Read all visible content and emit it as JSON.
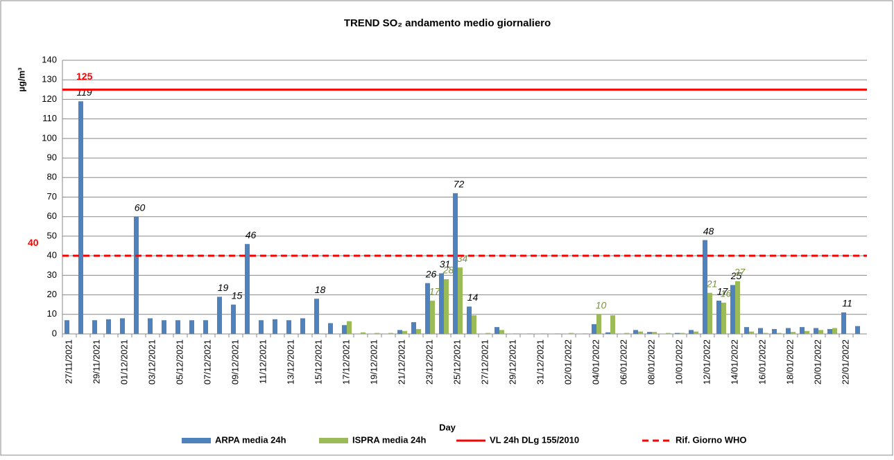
{
  "chart_data": {
    "type": "bar",
    "title": "TREND SO₂ andamento medio giornaliero",
    "y_label": "µg/m³",
    "x_label": "Day",
    "categories": [
      "27/11/2021",
      null,
      "29/11/2021",
      null,
      "01/12/2021",
      null,
      "03/12/2021",
      null,
      "05/12/2021",
      null,
      "07/12/2021",
      null,
      "09/12/2021",
      null,
      "11/12/2021",
      null,
      "13/12/2021",
      null,
      "15/12/2021",
      null,
      "17/12/2021",
      null,
      "19/12/2021",
      null,
      "21/12/2021",
      null,
      "23/12/2021",
      null,
      "25/12/2021",
      null,
      "27/12/2021",
      null,
      "29/12/2021",
      null,
      "31/12/2021",
      null,
      "02/01/2022",
      null,
      "04/01/2022",
      null,
      "06/01/2022",
      null,
      "08/01/2022",
      null,
      "10/01/2022",
      null,
      "12/01/2022",
      null,
      "14/01/2022",
      null,
      "16/01/2022",
      null,
      "18/01/2022",
      null,
      "20/01/2022",
      null,
      "22/01/2022",
      null
    ],
    "series": [
      {
        "name": "ARPA media 24h",
        "color": "#4f81bd",
        "label_color": "#000000",
        "values": [
          7,
          119,
          7,
          7.5,
          8,
          60,
          8,
          7,
          7,
          7,
          7,
          19,
          15,
          46,
          7,
          7.5,
          7,
          8,
          18,
          5.5,
          4.5,
          null,
          null,
          null,
          2,
          6,
          26,
          31,
          72,
          14,
          null,
          3.5,
          null,
          null,
          null,
          null,
          null,
          null,
          5,
          0.8,
          null,
          2,
          1,
          null,
          0.5,
          2,
          48,
          17,
          25,
          3.5,
          3,
          2.5,
          3,
          3.5,
          3,
          2.5,
          11,
          4
        ],
        "value_labels": [
          null,
          "119",
          null,
          null,
          null,
          "60",
          null,
          null,
          null,
          null,
          null,
          "19",
          "15",
          "46",
          null,
          null,
          null,
          null,
          "18",
          null,
          null,
          null,
          null,
          null,
          null,
          null,
          "26",
          "31",
          "72",
          "14",
          null,
          null,
          null,
          null,
          null,
          null,
          null,
          null,
          null,
          null,
          null,
          null,
          null,
          null,
          null,
          null,
          "48",
          "17",
          "25",
          null,
          null,
          null,
          null,
          null,
          null,
          null,
          "11",
          null
        ]
      },
      {
        "name": "ISPRA media 24h",
        "color": "#9bbb59",
        "label_color": "#77933c",
        "values": [
          null,
          null,
          null,
          null,
          null,
          null,
          null,
          null,
          null,
          null,
          null,
          null,
          null,
          null,
          null,
          null,
          null,
          null,
          null,
          null,
          6.5,
          0.8,
          0.5,
          0.5,
          1.5,
          2.5,
          17,
          28,
          34,
          9.5,
          0.5,
          2,
          0.3,
          0.3,
          0.3,
          0.3,
          0.5,
          0.3,
          10,
          9.5,
          0.5,
          1.2,
          1,
          0.5,
          0.5,
          1.2,
          21,
          16,
          27,
          1.2,
          0.5,
          0.5,
          1,
          1.5,
          2,
          3,
          null,
          null
        ],
        "value_labels": [
          null,
          null,
          null,
          null,
          null,
          null,
          null,
          null,
          null,
          null,
          null,
          null,
          null,
          null,
          null,
          null,
          null,
          null,
          null,
          null,
          null,
          null,
          null,
          null,
          null,
          null,
          "17",
          "28",
          "34",
          null,
          null,
          null,
          null,
          null,
          null,
          null,
          null,
          null,
          "10",
          null,
          null,
          null,
          null,
          null,
          null,
          null,
          "21",
          "16",
          "27",
          null,
          null,
          null,
          null,
          null,
          null,
          null,
          null,
          null
        ]
      }
    ],
    "reference_lines": [
      {
        "name": "VL 24h DLg 155/2010",
        "value": 125,
        "color": "#ff0000",
        "dashed": false
      },
      {
        "name": "Rif. Giorno WHO",
        "value": 40,
        "color": "#ff0000",
        "dashed": true
      }
    ],
    "ylim": [
      0,
      140
    ],
    "yticks": [
      0,
      10,
      20,
      30,
      40,
      50,
      60,
      70,
      80,
      90,
      100,
      110,
      120,
      130,
      140
    ],
    "grid": true
  }
}
